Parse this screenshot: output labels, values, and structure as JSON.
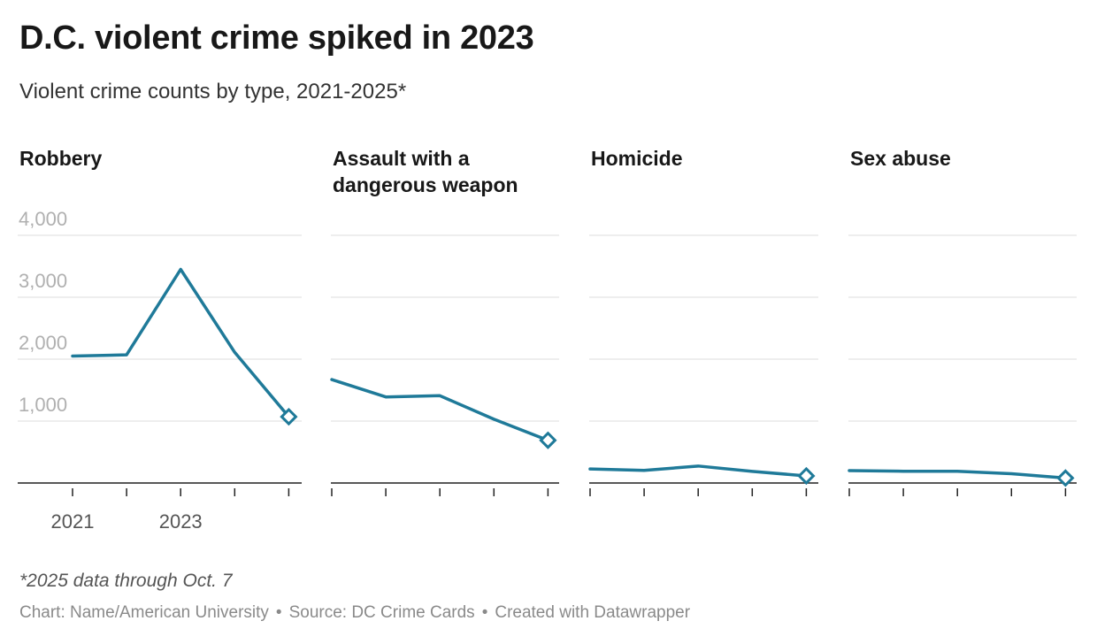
{
  "title": "D.C. violent crime spiked in 2023",
  "subtitle": "Violent crime counts by type, 2021-2025*",
  "note": "*2025 data through Oct. 7",
  "footer": {
    "chart_credit": "Chart: Name/American University",
    "source": "Source: DC Crime Cards",
    "created_with": "Created with Datawrapper",
    "separator": "•"
  },
  "line_color": "#1f7a99",
  "chart_data": [
    {
      "type": "line",
      "title": "Robbery",
      "x": [
        2021,
        2022,
        2023,
        2024,
        2025
      ],
      "values": [
        2050,
        2070,
        3450,
        2110,
        1070
      ],
      "ylim": [
        0,
        4000
      ],
      "yticks": [
        1000,
        2000,
        3000,
        4000
      ],
      "ytick_labels": [
        "1,000",
        "2,000",
        "3,000",
        "4,000"
      ],
      "xtick_labels": [
        "2021",
        "2023"
      ],
      "grid": true
    },
    {
      "type": "line",
      "title": "Assault with a dangerous weapon",
      "x": [
        2021,
        2022,
        2023,
        2024,
        2025
      ],
      "values": [
        1670,
        1390,
        1410,
        1030,
        690
      ],
      "ylim": [
        0,
        4000
      ],
      "grid": true
    },
    {
      "type": "line",
      "title": "Homicide",
      "x": [
        2021,
        2022,
        2023,
        2024,
        2025
      ],
      "values": [
        226,
        203,
        274,
        187,
        115
      ],
      "ylim": [
        0,
        4000
      ],
      "grid": true
    },
    {
      "type": "line",
      "title": "Sex abuse",
      "x": [
        2021,
        2022,
        2023,
        2024,
        2025
      ],
      "values": [
        200,
        190,
        190,
        150,
        80
      ],
      "ylim": [
        0,
        4000
      ],
      "grid": true
    }
  ]
}
